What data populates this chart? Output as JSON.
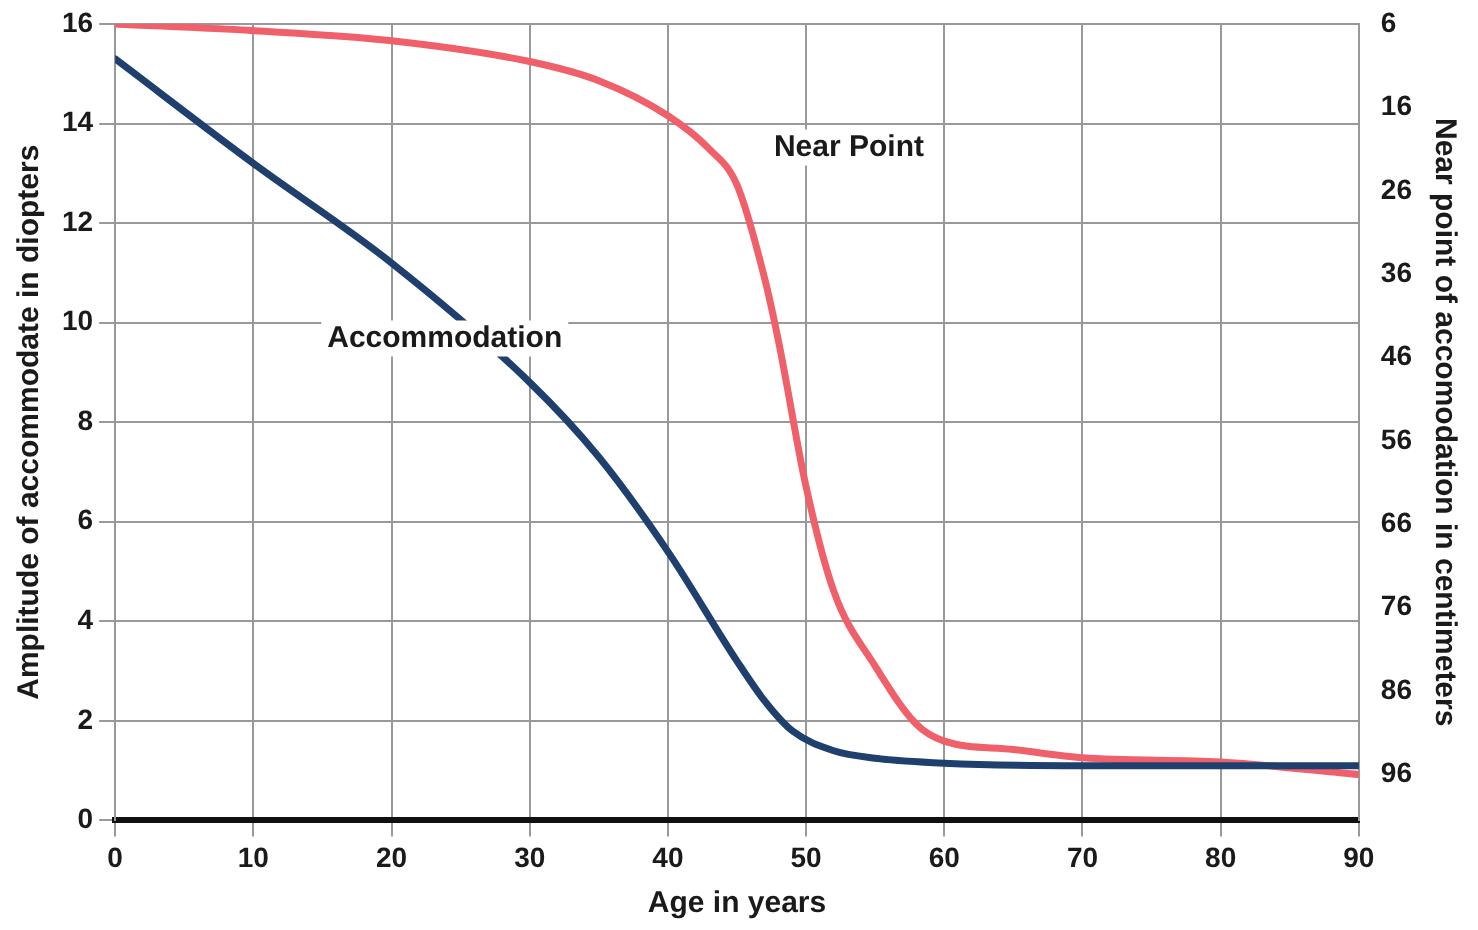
{
  "chart_data": {
    "type": "line",
    "xlabel": "Age in years",
    "ylabel": "Amplitude of accommodate in diopters",
    "y2label": "Near point of accomodation in centimeters",
    "xlim": [
      0,
      90
    ],
    "xticks": [
      0,
      10,
      20,
      30,
      40,
      50,
      60,
      70,
      80,
      90
    ],
    "ylim": [
      0,
      16
    ],
    "yticks": [
      0,
      2,
      4,
      6,
      8,
      10,
      12,
      14,
      16
    ],
    "y2lim": [
      101.5,
      6
    ],
    "y2ticks": [
      6,
      16,
      26,
      36,
      46,
      56,
      66,
      76,
      86,
      96
    ],
    "grid": true,
    "legend": false,
    "marker": "none",
    "line_style": "solid",
    "series": [
      {
        "name": "Accommodation",
        "color": "#1f3f6e",
        "x": [
          0,
          10,
          20,
          30,
          35,
          40,
          45,
          47,
          49,
          52,
          55,
          60,
          70,
          80,
          90
        ],
        "values": [
          15.3,
          13.2,
          11.2,
          8.8,
          7.3,
          5.4,
          3.2,
          2.4,
          1.8,
          1.4,
          1.25,
          1.15,
          1.1,
          1.1,
          1.1
        ]
      },
      {
        "name": "Near Point",
        "color": "#f0606a",
        "axis": "y2",
        "x": [
          0,
          10,
          20,
          30,
          35,
          40,
          43,
          45,
          47,
          48,
          50,
          52,
          55,
          58,
          60,
          65,
          70,
          80,
          90
        ],
        "values": [
          6,
          6.8,
          8,
          10.5,
          12.8,
          17,
          21,
          25.3,
          36.5,
          44,
          61.5,
          74,
          83,
          90,
          92,
          93,
          94,
          94.5,
          96
        ]
      }
    ]
  }
}
